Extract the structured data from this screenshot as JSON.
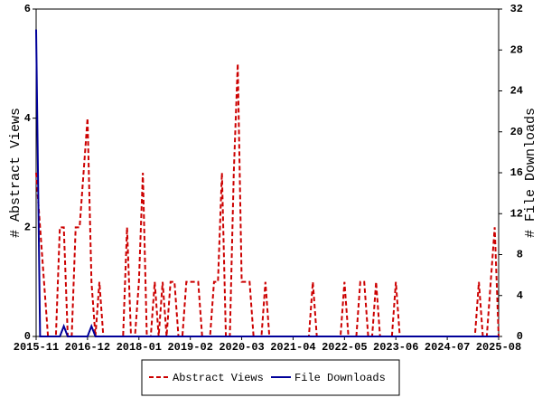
{
  "chart_data": {
    "type": "line",
    "y_label": "# Abstract Views",
    "y2_label": "# File Downloads",
    "categories": [
      "2015-11",
      null,
      null,
      null,
      null,
      null,
      null,
      null,
      null,
      null,
      null,
      null,
      null,
      "2016-12",
      null,
      null,
      null,
      null,
      null,
      null,
      null,
      null,
      null,
      null,
      null,
      null,
      "2018-01",
      null,
      null,
      null,
      null,
      null,
      null,
      null,
      null,
      null,
      null,
      null,
      null,
      "2019-02",
      null,
      null,
      null,
      null,
      null,
      null,
      null,
      null,
      null,
      null,
      null,
      null,
      "2020-03",
      null,
      null,
      null,
      null,
      null,
      null,
      null,
      null,
      null,
      null,
      null,
      null,
      "2021-04",
      null,
      null,
      null,
      null,
      null,
      null,
      null,
      null,
      null,
      null,
      null,
      null,
      "2022-05",
      null,
      null,
      null,
      null,
      null,
      null,
      null,
      null,
      null,
      null,
      null,
      null,
      "2023-06",
      null,
      null,
      null,
      null,
      null,
      null,
      null,
      null,
      null,
      null,
      null,
      null,
      "2024-07",
      null,
      null,
      null,
      null,
      null,
      null,
      null,
      null,
      null,
      null,
      null,
      null,
      "2025-08"
    ],
    "series": [
      {
        "name": "Abstract Views",
        "color": "#cc0000",
        "dashed": true,
        "values": [
          3,
          2,
          1,
          0,
          0,
          0,
          2,
          2,
          0,
          0,
          2,
          2,
          3,
          4,
          1,
          0,
          1,
          0,
          0,
          0,
          0,
          0,
          0,
          2,
          0,
          0,
          1,
          3,
          0,
          0,
          1,
          0,
          1,
          0,
          1,
          1,
          0,
          0,
          1,
          1,
          1,
          1,
          0,
          0,
          0,
          1,
          1,
          3,
          0,
          0,
          3,
          5,
          1,
          1,
          1,
          0,
          0,
          0,
          1,
          0,
          0,
          0,
          0,
          0,
          0,
          0,
          0,
          0,
          0,
          0,
          1,
          0,
          0,
          0,
          0,
          0,
          0,
          0,
          1,
          0,
          0,
          0,
          1,
          1,
          0,
          0,
          1,
          0,
          0,
          0,
          0,
          1,
          0,
          0,
          0,
          0,
          0,
          0,
          0,
          0,
          0,
          0,
          0,
          0,
          0,
          0,
          0,
          0,
          0,
          0,
          0,
          0,
          1,
          0,
          0,
          1,
          2,
          0
        ]
      },
      {
        "name": "File Downloads",
        "color": "#000099",
        "dashed": false,
        "axis": "y2",
        "values": [
          30,
          0,
          0,
          0,
          0,
          0,
          0,
          1,
          0,
          0,
          0,
          0,
          0,
          0,
          1,
          0,
          0,
          0,
          0,
          0,
          0,
          0,
          0,
          0,
          0,
          0,
          0,
          0,
          0,
          0,
          0,
          0,
          0,
          0,
          0,
          0,
          0,
          0,
          0,
          0,
          0,
          0,
          0,
          0,
          0,
          0,
          0,
          0,
          0,
          0,
          0,
          0,
          0,
          0,
          0,
          0,
          0,
          0,
          0,
          0,
          0,
          0,
          0,
          0,
          0,
          0,
          0,
          0,
          0,
          0,
          0,
          0,
          0,
          0,
          0,
          0,
          0,
          0,
          0,
          0,
          0,
          0,
          0,
          0,
          0,
          0,
          0,
          0,
          0,
          0,
          0,
          0,
          0,
          0,
          0,
          0,
          0,
          0,
          0,
          0,
          0,
          0,
          0,
          0,
          0,
          0,
          0,
          0,
          0,
          0,
          0,
          0,
          0,
          0,
          0,
          0,
          0,
          0
        ]
      }
    ],
    "ylim": [
      0,
      6
    ],
    "yticks": [
      0,
      2,
      4,
      6
    ],
    "y2lim": [
      0,
      32
    ],
    "y2ticks": [
      0,
      4,
      8,
      12,
      16,
      20,
      24,
      28,
      32
    ],
    "grid": false,
    "legend": "bottom"
  }
}
